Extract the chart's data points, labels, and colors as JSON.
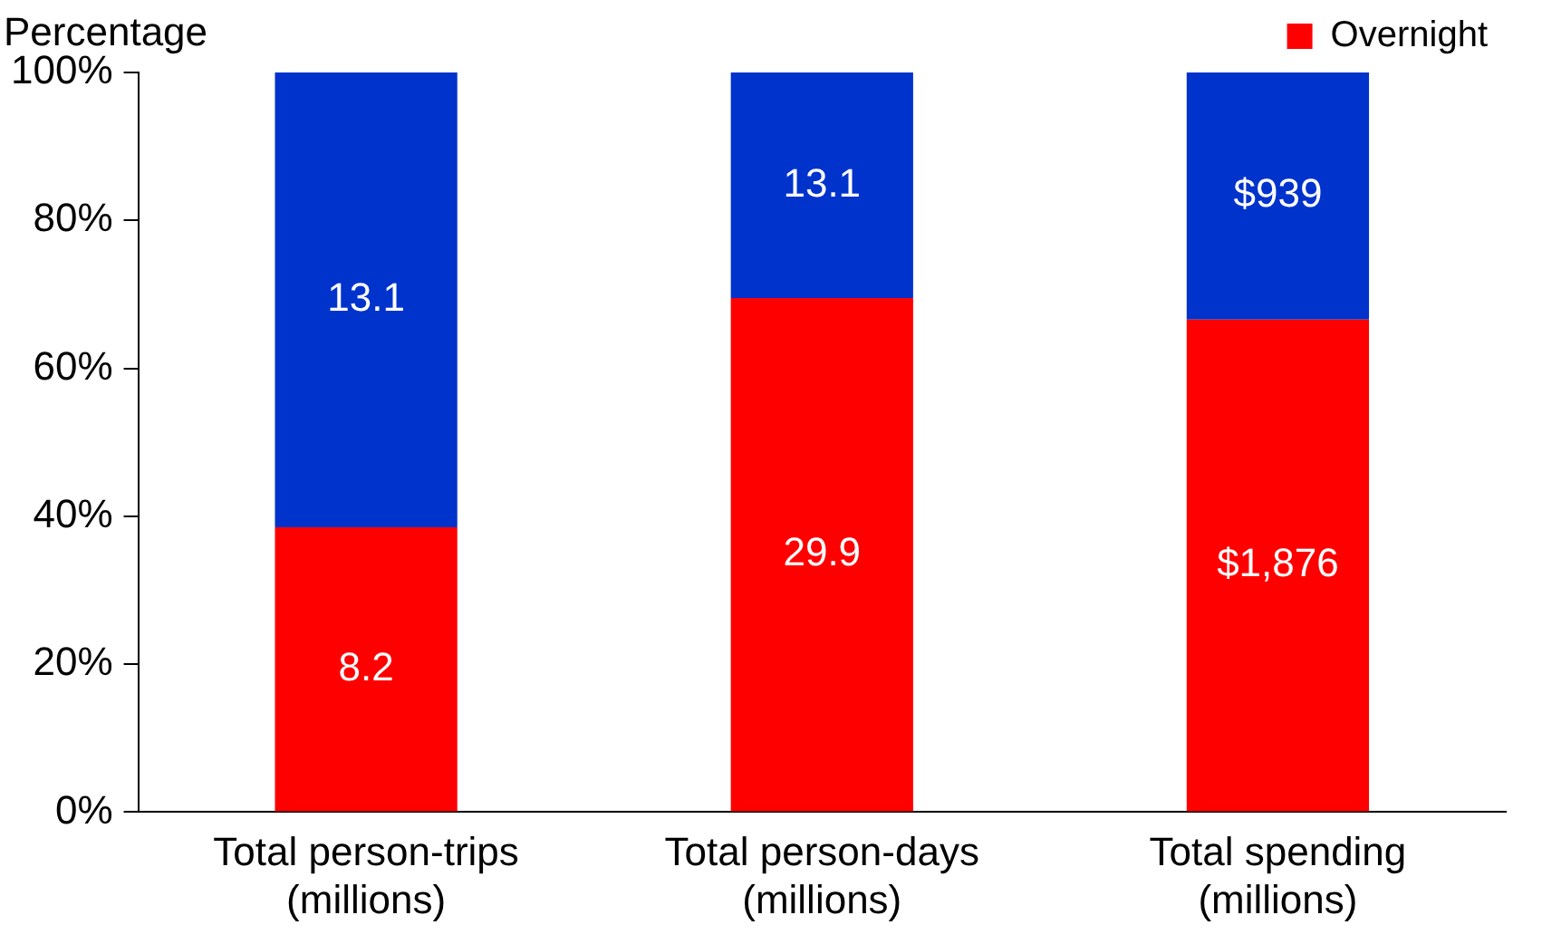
{
  "chart_data": {
    "type": "bar",
    "stacked": true,
    "ylabel": "Percentage",
    "categories": [
      "Total person-trips (millions)",
      "Total person-days (millions)",
      "Total spending (millions)"
    ],
    "series": [
      {
        "name": "Overnight",
        "color": "#ff0000",
        "values": [
          38.5,
          69.5,
          66.6
        ]
      },
      {
        "color": "#0033cc",
        "values": [
          61.5,
          30.5,
          33.4
        ]
      }
    ],
    "annotations": [
      "8.2",
      "29.9",
      "$1,876",
      "13.1",
      "13.1",
      "$939"
    ],
    "ylim": [
      0,
      100
    ],
    "yticks": [
      {
        "value": 0,
        "label": "0%"
      },
      {
        "value": 20,
        "label": "20%"
      },
      {
        "value": 40,
        "label": "40%"
      },
      {
        "value": 60,
        "label": "60%"
      },
      {
        "value": 80,
        "label": "80%"
      },
      {
        "value": 100,
        "label": "100%"
      }
    ],
    "grid": false,
    "legend": "top right"
  }
}
